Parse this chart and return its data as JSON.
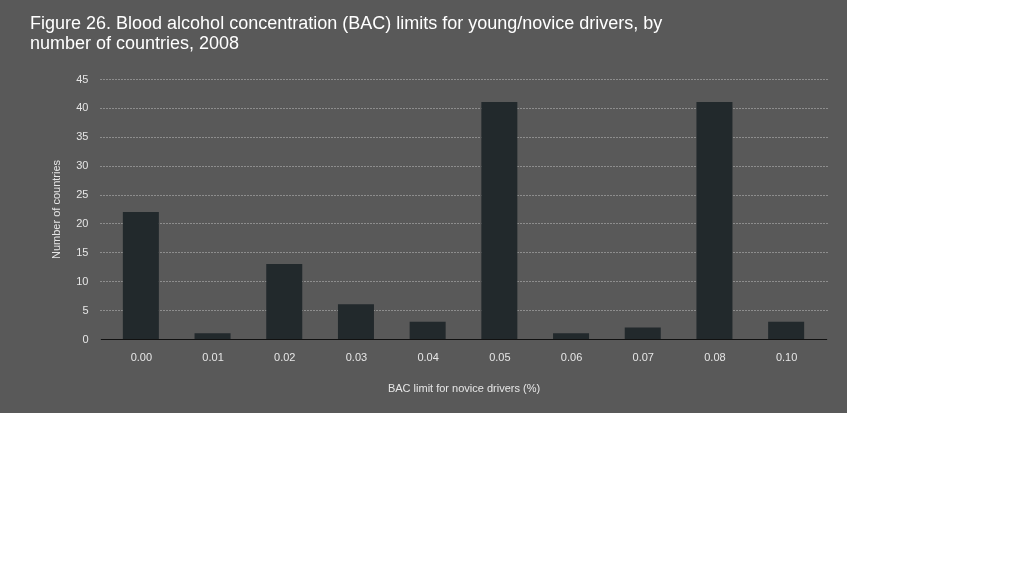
{
  "chart_data": {
    "type": "bar",
    "title": "Figure 26. Blood alcohol concentration (BAC) limits for young/novice drivers, by number of countries, 2008",
    "xlabel": "BAC limit for novice drivers (%)",
    "ylabel": "Number of countries",
    "categories": [
      "0.00",
      "0.01",
      "0.02",
      "0.03",
      "0.04",
      "0.05",
      "0.06",
      "0.07",
      "0.08",
      "0.10"
    ],
    "values": [
      22,
      1,
      13,
      6,
      3,
      41,
      1,
      2,
      41,
      3
    ],
    "color": "#22292c",
    "ylim": [
      0,
      45
    ],
    "yticks": [
      0,
      5,
      10,
      15,
      20,
      25,
      30,
      35,
      40,
      45
    ],
    "grid": "y"
  }
}
